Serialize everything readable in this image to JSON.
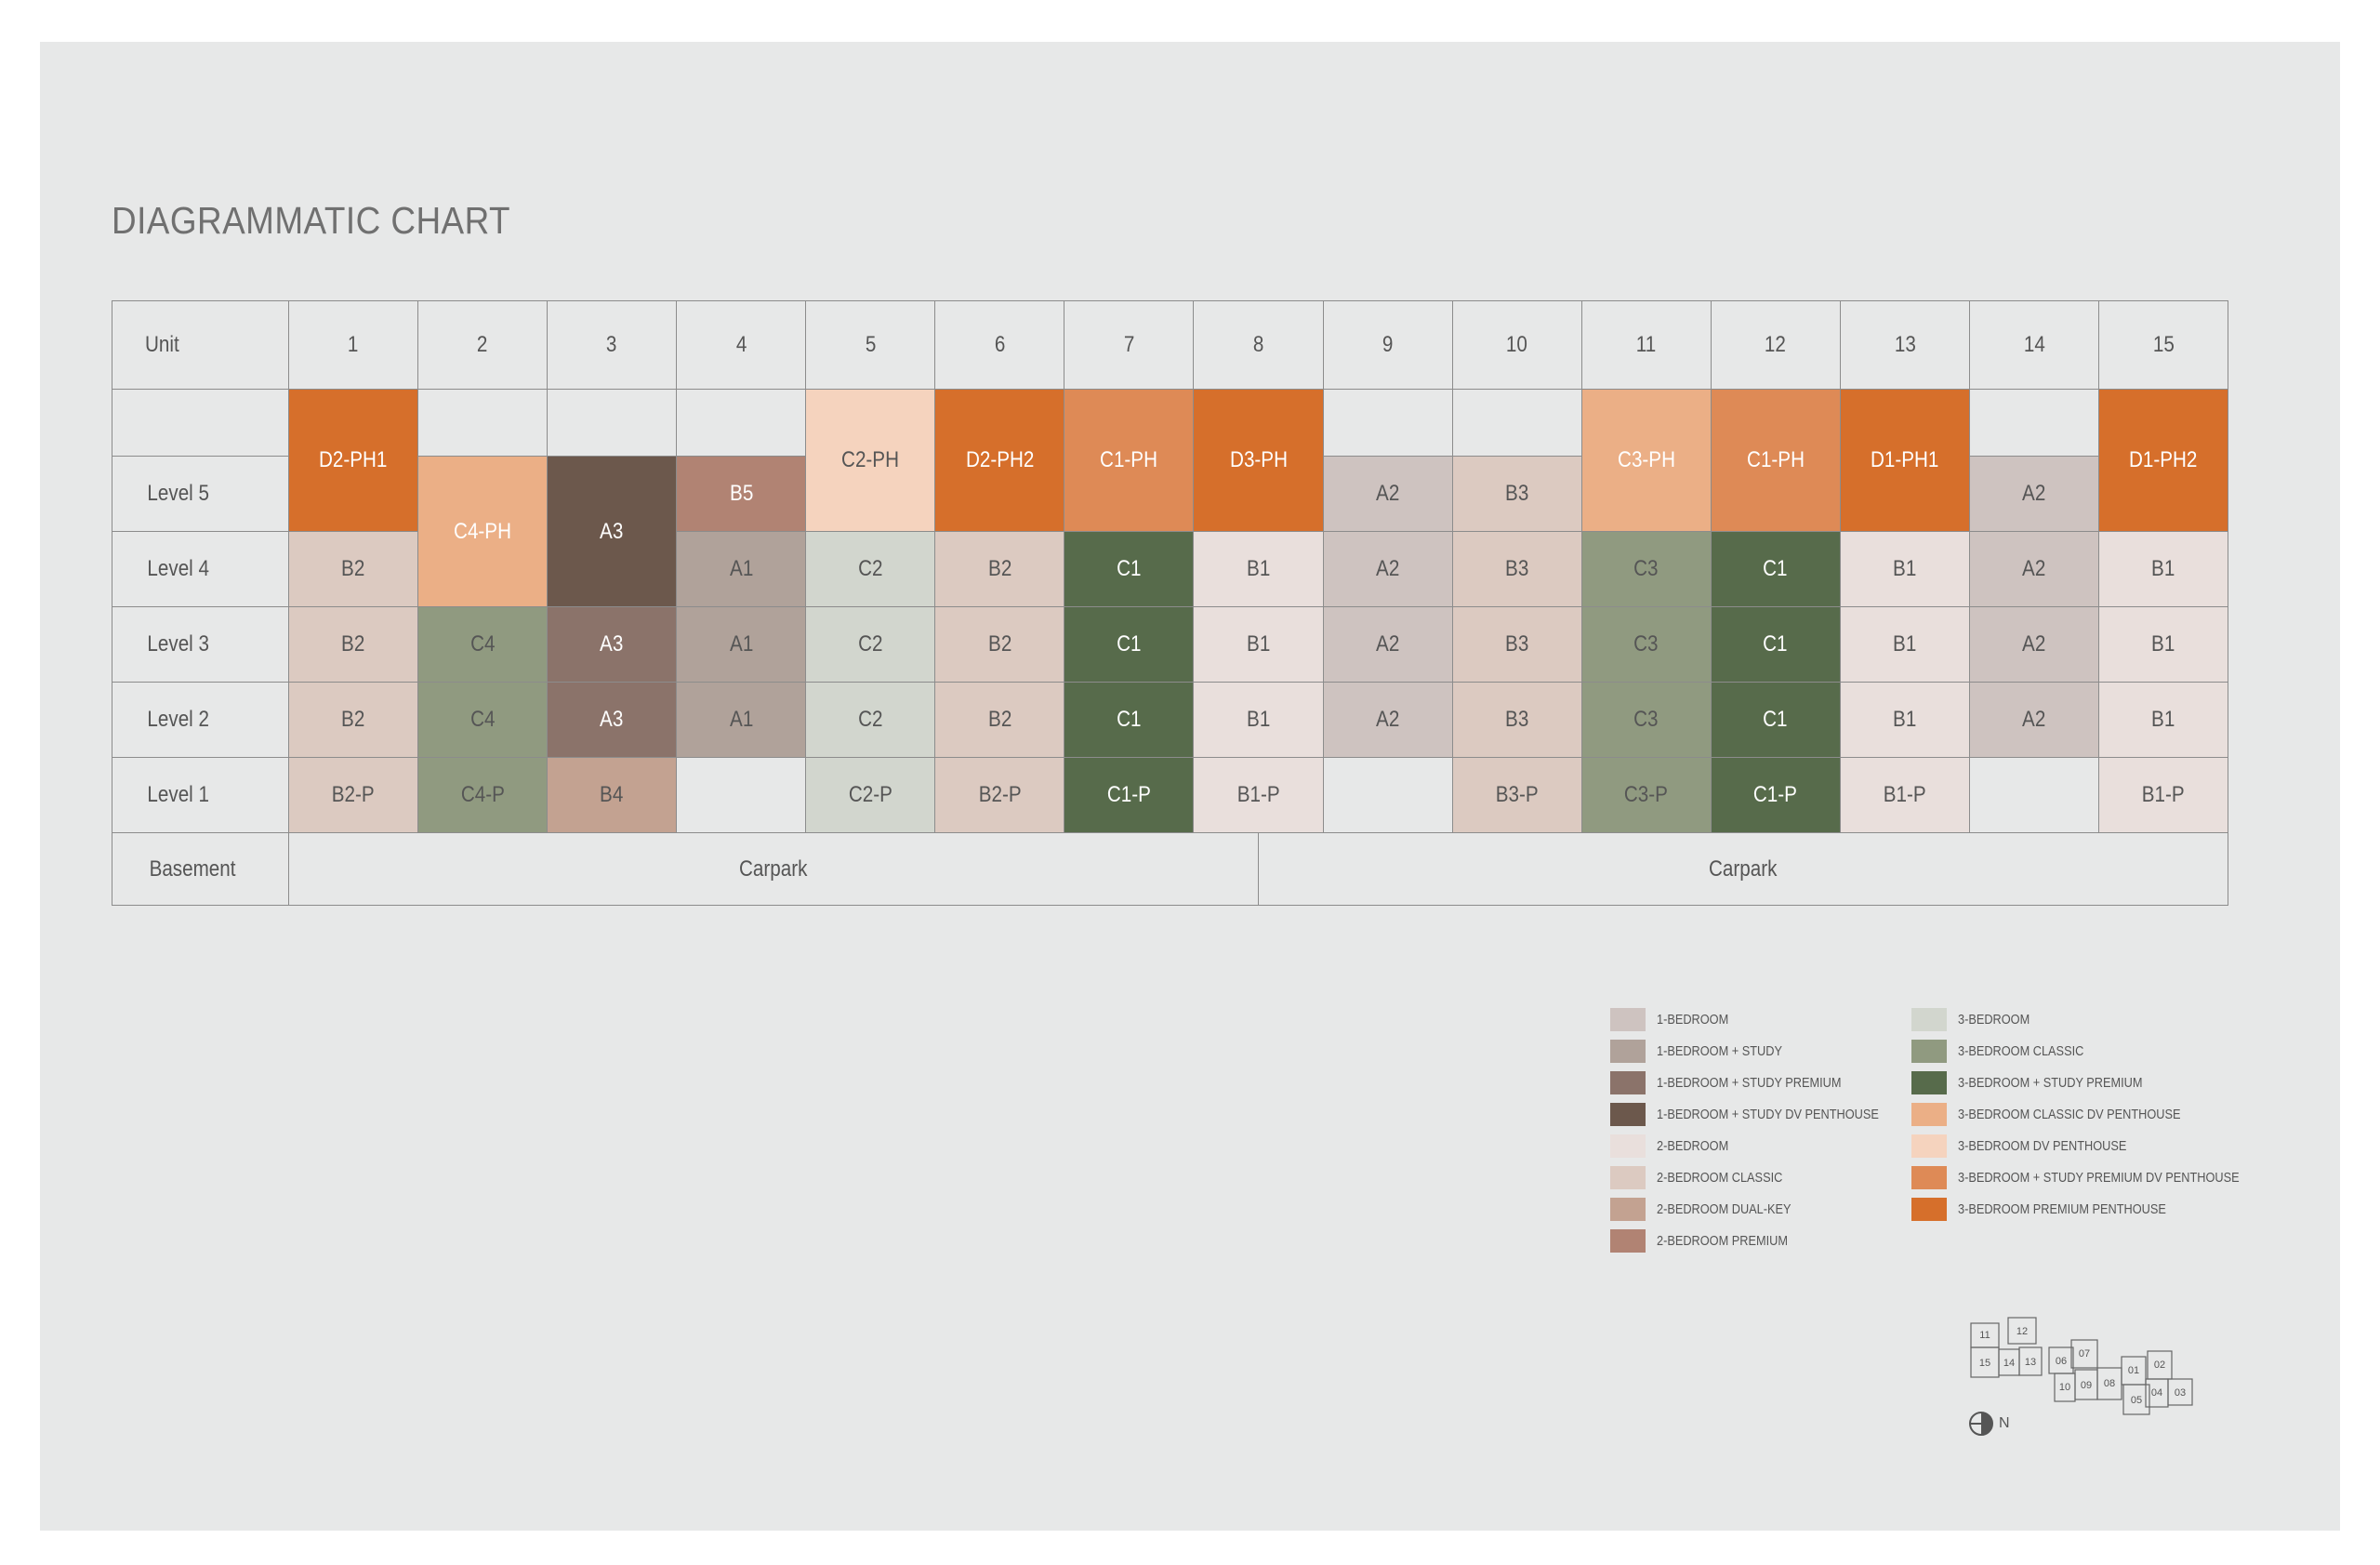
{
  "title": "DIAGRAMMATIC CHART",
  "header": {
    "label": "Unit",
    "units": [
      "1",
      "2",
      "3",
      "4",
      "5",
      "6",
      "7",
      "8",
      "9",
      "10",
      "11",
      "12",
      "13",
      "14",
      "15"
    ]
  },
  "levels": [
    "Level 5",
    "Level 4",
    "Level 3",
    "Level 2",
    "Level 1"
  ],
  "basement": {
    "label": "Basement",
    "left": "Carpark",
    "right": "Carpark"
  },
  "units": [
    {
      "ph": "D2-PH1",
      "ph_type": "3-BEDROOM PREMIUM PENTHOUSE",
      "ph_tall": true,
      "floors": [
        {
          "label": "B2",
          "type": "2-BEDROOM CLASSIC"
        },
        {
          "label": "B2",
          "type": "2-BEDROOM CLASSIC"
        },
        {
          "label": "B2",
          "type": "2-BEDROOM CLASSIC"
        },
        {
          "label": "B2-P",
          "type": "2-BEDROOM CLASSIC"
        }
      ]
    },
    {
      "ph": "C4-PH",
      "ph_type": "3-BEDROOM CLASSIC DV PENTHOUSE",
      "ph_tall": false,
      "ph_span": true,
      "floors": [
        {
          "label": "C4",
          "type": "3-BEDROOM CLASSIC"
        },
        {
          "label": "C4",
          "type": "3-BEDROOM CLASSIC"
        },
        {
          "label": "C4-P",
          "type": "3-BEDROOM CLASSIC"
        }
      ]
    },
    {
      "ph": "A3",
      "ph_type": "1-BEDROOM + STUDY DV PENTHOUSE",
      "ph_tall": false,
      "ph_span": true,
      "floors": [
        {
          "label": "A3",
          "type": "1-BEDROOM + STUDY PREMIUM"
        },
        {
          "label": "A3",
          "type": "1-BEDROOM + STUDY PREMIUM"
        },
        {
          "label": "B4",
          "type": "2-BEDROOM DUAL-KEY"
        }
      ]
    },
    {
      "ph": "B5",
      "ph_type": "2-BEDROOM PREMIUM",
      "ph_tall": false,
      "floors": [
        {
          "label": "A1",
          "type": "1-BEDROOM + STUDY"
        },
        {
          "label": "A1",
          "type": "1-BEDROOM + STUDY"
        },
        {
          "label": "A1",
          "type": "1-BEDROOM + STUDY"
        },
        {
          "label": "",
          "type": "NONE"
        }
      ]
    },
    {
      "ph": "C2-PH",
      "ph_type": "3-BEDROOM DV PENTHOUSE",
      "ph_tall": true,
      "floors": [
        {
          "label": "C2",
          "type": "3-BEDROOM"
        },
        {
          "label": "C2",
          "type": "3-BEDROOM"
        },
        {
          "label": "C2",
          "type": "3-BEDROOM"
        },
        {
          "label": "C2-P",
          "type": "3-BEDROOM"
        }
      ]
    },
    {
      "ph": "D2-PH2",
      "ph_type": "3-BEDROOM PREMIUM PENTHOUSE",
      "ph_tall": true,
      "floors": [
        {
          "label": "B2",
          "type": "2-BEDROOM CLASSIC"
        },
        {
          "label": "B2",
          "type": "2-BEDROOM CLASSIC"
        },
        {
          "label": "B2",
          "type": "2-BEDROOM CLASSIC"
        },
        {
          "label": "B2-P",
          "type": "2-BEDROOM CLASSIC"
        }
      ]
    },
    {
      "ph": "C1-PH",
      "ph_type": "3-BEDROOM + STUDY PREMIUM DV PENTHOUSE",
      "ph_tall": true,
      "floors": [
        {
          "label": "C1",
          "type": "3-BEDROOM + STUDY PREMIUM"
        },
        {
          "label": "C1",
          "type": "3-BEDROOM + STUDY PREMIUM"
        },
        {
          "label": "C1",
          "type": "3-BEDROOM + STUDY PREMIUM"
        },
        {
          "label": "C1-P",
          "type": "3-BEDROOM + STUDY PREMIUM"
        }
      ]
    },
    {
      "ph": "D3-PH",
      "ph_type": "3-BEDROOM PREMIUM PENTHOUSE",
      "ph_tall": true,
      "floors": [
        {
          "label": "B1",
          "type": "2-BEDROOM"
        },
        {
          "label": "B1",
          "type": "2-BEDROOM"
        },
        {
          "label": "B1",
          "type": "2-BEDROOM"
        },
        {
          "label": "B1-P",
          "type": "2-BEDROOM"
        }
      ]
    },
    {
      "ph": "A2",
      "ph_type": "1-BEDROOM",
      "ph_tall": false,
      "floors": [
        {
          "label": "A2",
          "type": "1-BEDROOM"
        },
        {
          "label": "A2",
          "type": "1-BEDROOM"
        },
        {
          "label": "A2",
          "type": "1-BEDROOM"
        },
        {
          "label": "",
          "type": "NONE"
        }
      ]
    },
    {
      "ph": "B3",
      "ph_type": "2-BEDROOM CLASSIC",
      "ph_tall": false,
      "floors": [
        {
          "label": "B3",
          "type": "2-BEDROOM CLASSIC"
        },
        {
          "label": "B3",
          "type": "2-BEDROOM CLASSIC"
        },
        {
          "label": "B3",
          "type": "2-BEDROOM CLASSIC"
        },
        {
          "label": "B3-P",
          "type": "2-BEDROOM CLASSIC"
        }
      ]
    },
    {
      "ph": "C3-PH",
      "ph_type": "3-BEDROOM CLASSIC DV PENTHOUSE",
      "ph_tall": true,
      "floors": [
        {
          "label": "C3",
          "type": "3-BEDROOM CLASSIC"
        },
        {
          "label": "C3",
          "type": "3-BEDROOM CLASSIC"
        },
        {
          "label": "C3",
          "type": "3-BEDROOM CLASSIC"
        },
        {
          "label": "C3-P",
          "type": "3-BEDROOM CLASSIC"
        }
      ]
    },
    {
      "ph": "C1-PH",
      "ph_type": "3-BEDROOM + STUDY PREMIUM DV PENTHOUSE",
      "ph_tall": true,
      "floors": [
        {
          "label": "C1",
          "type": "3-BEDROOM + STUDY PREMIUM"
        },
        {
          "label": "C1",
          "type": "3-BEDROOM + STUDY PREMIUM"
        },
        {
          "label": "C1",
          "type": "3-BEDROOM + STUDY PREMIUM"
        },
        {
          "label": "C1-P",
          "type": "3-BEDROOM + STUDY PREMIUM"
        }
      ]
    },
    {
      "ph": "D1-PH1",
      "ph_type": "3-BEDROOM PREMIUM PENTHOUSE",
      "ph_tall": true,
      "floors": [
        {
          "label": "B1",
          "type": "2-BEDROOM"
        },
        {
          "label": "B1",
          "type": "2-BEDROOM"
        },
        {
          "label": "B1",
          "type": "2-BEDROOM"
        },
        {
          "label": "B1-P",
          "type": "2-BEDROOM"
        }
      ]
    },
    {
      "ph": "A2",
      "ph_type": "1-BEDROOM",
      "ph_tall": false,
      "floors": [
        {
          "label": "A2",
          "type": "1-BEDROOM"
        },
        {
          "label": "A2",
          "type": "1-BEDROOM"
        },
        {
          "label": "A2",
          "type": "1-BEDROOM"
        },
        {
          "label": "",
          "type": "NONE"
        }
      ]
    },
    {
      "ph": "D1-PH2",
      "ph_type": "3-BEDROOM PREMIUM PENTHOUSE",
      "ph_tall": true,
      "floors": [
        {
          "label": "B1",
          "type": "2-BEDROOM"
        },
        {
          "label": "B1",
          "type": "2-BEDROOM"
        },
        {
          "label": "B1",
          "type": "2-BEDROOM"
        },
        {
          "label": "B1-P",
          "type": "2-BEDROOM"
        }
      ]
    }
  ],
  "legend": [
    {
      "label": "1-BEDROOM",
      "color": "#cec3c0"
    },
    {
      "label": "1-BEDROOM + STUDY",
      "color": "#b0a29a"
    },
    {
      "label": "1-BEDROOM + STUDY PREMIUM",
      "color": "#8b736a"
    },
    {
      "label": "1-BEDROOM + STUDY DV PENTHOUSE",
      "color": "#6c584c"
    },
    {
      "label": "2-BEDROOM",
      "color": "#e9dfdc"
    },
    {
      "label": "2-BEDROOM CLASSIC",
      "color": "#dccac1"
    },
    {
      "label": "2-BEDROOM DUAL-KEY",
      "color": "#c3a291"
    },
    {
      "label": "2-BEDROOM PREMIUM",
      "color": "#b18373"
    },
    {
      "label": "3-BEDROOM",
      "color": "#d2d6ce"
    },
    {
      "label": "3-BEDROOM CLASSIC",
      "color": "#909a80"
    },
    {
      "label": "3-BEDROOM + STUDY PREMIUM",
      "color": "#576b4b"
    },
    {
      "label": "3-BEDROOM CLASSIC DV PENTHOUSE",
      "color": "#ebaf86"
    },
    {
      "label": "3-BEDROOM DV PENTHOUSE",
      "color": "#f5d3be"
    },
    {
      "label": "3-BEDROOM + STUDY PREMIUM DV PENTHOUSE",
      "color": "#de8a56"
    },
    {
      "label": "3-BEDROOM PREMIUM PENTHOUSE",
      "color": "#d66f2b"
    }
  ],
  "keyplan": {
    "labels": [
      "11",
      "12",
      "15",
      "14",
      "13",
      "06",
      "07",
      "10",
      "09",
      "08",
      "01",
      "02",
      "05",
      "04",
      "03"
    ],
    "north_label": "N"
  }
}
